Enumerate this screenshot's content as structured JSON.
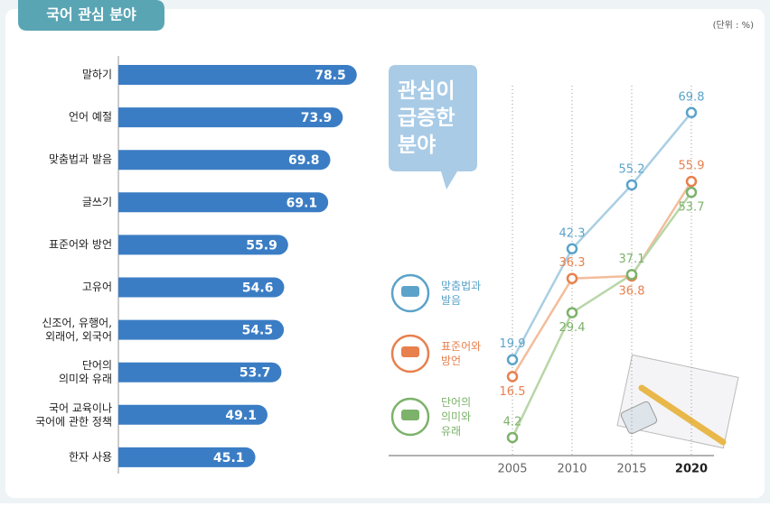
{
  "title": "국어 관심 분야",
  "unit": "(단위 : %)",
  "chart_data": [
    {
      "type": "hbar",
      "categories": [
        "말하기",
        "언어 예절",
        "맞춤법과 발음",
        "글쓰기",
        "표준어와 방언",
        "고유어",
        "신조어, 유행어,\n외래어, 외국어",
        "단어의\n의미와 유래",
        "국어 교육이나\n국어에 관한 정책",
        "한자 사용"
      ],
      "values": [
        78.5,
        73.9,
        69.8,
        69.1,
        55.9,
        54.6,
        54.5,
        53.7,
        49.1,
        45.1
      ],
      "color": "#3b7dc4"
    },
    {
      "type": "line",
      "callout": "관심이\n급증한\n분야",
      "x": [
        2005,
        2010,
        2015,
        2020
      ],
      "series": [
        {
          "name": "맞춤법과\n발음",
          "color": "#5ba3c9",
          "values": [
            19.9,
            42.3,
            55.2,
            69.8
          ]
        },
        {
          "name": "표준어와\n방언",
          "color": "#e8804e",
          "values": [
            16.5,
            36.3,
            36.8,
            55.9
          ]
        },
        {
          "name": "단어의\n의미와\n유래",
          "color": "#7cb26a",
          "values": [
            4.2,
            29.4,
            37.1,
            53.7
          ]
        }
      ]
    }
  ]
}
